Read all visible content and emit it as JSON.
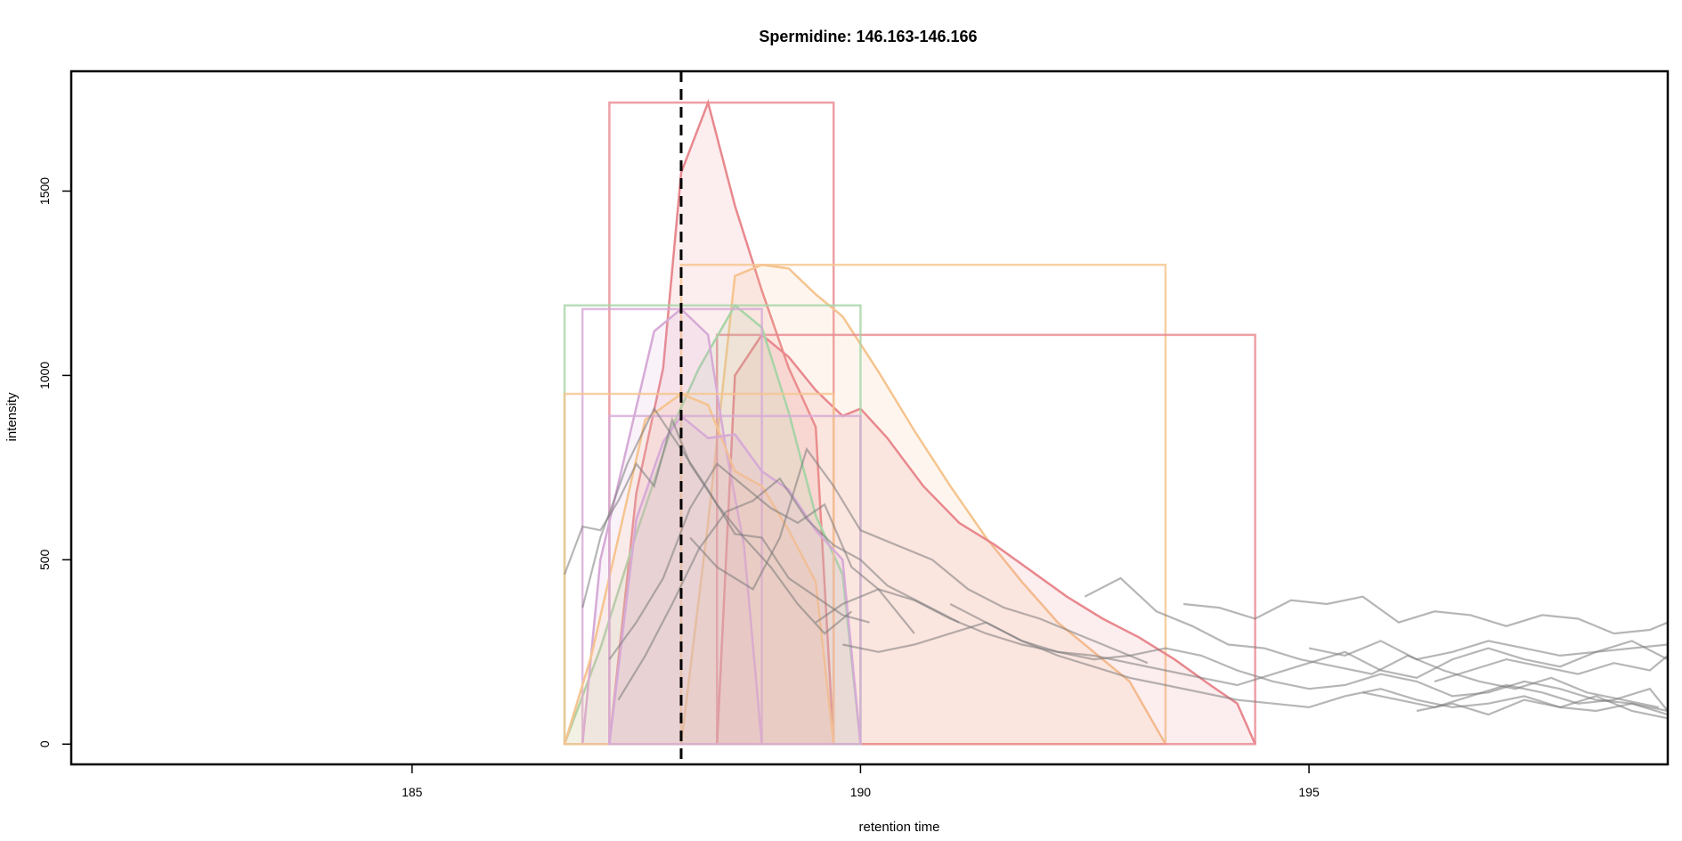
{
  "chart_data": {
    "type": "line",
    "title": "Spermidine: 146.163-146.166",
    "xlabel": "retention time",
    "ylabel": "intensity",
    "xlim": [
      181.2,
      199.0
    ],
    "ylim": [
      -55,
      1825
    ],
    "x_ticks": [
      185,
      190,
      195
    ],
    "y_ticks": [
      0,
      500,
      1000,
      1500
    ],
    "x_tick_labels": [
      "185",
      "190",
      "195"
    ],
    "y_tick_labels": [
      "0",
      "500",
      "1000",
      "1500"
    ],
    "grid": false,
    "legend": "none",
    "reference_line": {
      "x": 188.0,
      "style": "dashed",
      "color": "#000000"
    },
    "peaks": [
      {
        "color": "#e8888e",
        "rt_min": 187.2,
        "rt_max": 189.7,
        "max_intensity": 1740,
        "x": [
          187.2,
          187.5,
          187.8,
          188.0,
          188.3,
          188.6,
          188.9,
          189.2,
          189.5,
          189.7
        ],
        "y": [
          0,
          680,
          1020,
          1550,
          1740,
          1460,
          1230,
          1020,
          860,
          0
        ]
      },
      {
        "color": "#f5c48f",
        "rt_min": 188.0,
        "rt_max": 193.4,
        "max_intensity": 1300,
        "x": [
          188.0,
          188.3,
          188.6,
          188.9,
          189.2,
          189.5,
          189.8,
          190.2,
          190.6,
          191.0,
          191.4,
          191.8,
          192.2,
          192.6,
          193.0,
          193.4
        ],
        "y": [
          0,
          600,
          1270,
          1300,
          1290,
          1220,
          1160,
          1010,
          850,
          700,
          560,
          440,
          330,
          250,
          170,
          0
        ]
      },
      {
        "color": "#e8888e",
        "rt_min": 188.4,
        "rt_max": 194.4,
        "max_intensity": 1110,
        "x": [
          188.4,
          188.6,
          188.9,
          189.2,
          189.5,
          189.8,
          190.0,
          190.3,
          190.7,
          191.1,
          191.5,
          191.9,
          192.3,
          192.7,
          193.1,
          193.5,
          193.9,
          194.2,
          194.4
        ],
        "y": [
          0,
          1000,
          1110,
          1050,
          960,
          890,
          910,
          830,
          700,
          600,
          540,
          470,
          400,
          340,
          290,
          230,
          160,
          110,
          0
        ]
      },
      {
        "color": "#a7d4a7",
        "rt_min": 186.7,
        "rt_max": 190.0,
        "max_intensity": 1190,
        "x": [
          186.7,
          187.1,
          187.5,
          187.9,
          188.2,
          188.6,
          188.9,
          189.2,
          189.5,
          189.8,
          190.0
        ],
        "y": [
          0,
          260,
          570,
          860,
          1020,
          1190,
          1130,
          900,
          620,
          460,
          0
        ]
      },
      {
        "color": "#d6aad6",
        "rt_min": 186.9,
        "rt_max": 188.9,
        "max_intensity": 1180,
        "x": [
          186.9,
          187.1,
          187.4,
          187.7,
          188.0,
          188.3,
          188.5,
          188.7,
          188.9
        ],
        "y": [
          0,
          500,
          810,
          1120,
          1180,
          1110,
          800,
          540,
          0
        ]
      },
      {
        "color": "#f5c48f",
        "rt_min": 186.7,
        "rt_max": 189.7,
        "max_intensity": 950,
        "x": [
          186.7,
          187.0,
          187.3,
          187.6,
          188.0,
          188.3,
          188.6,
          188.9,
          189.2,
          189.5,
          189.7
        ],
        "y": [
          0,
          240,
          560,
          880,
          950,
          920,
          740,
          700,
          580,
          440,
          0
        ]
      },
      {
        "color": "#d6aad6",
        "rt_min": 187.2,
        "rt_max": 190.0,
        "max_intensity": 890,
        "x": [
          187.2,
          187.5,
          187.8,
          188.0,
          188.3,
          188.6,
          188.9,
          189.2,
          189.5,
          189.8,
          190.0
        ],
        "y": [
          0,
          610,
          820,
          890,
          830,
          840,
          740,
          690,
          580,
          500,
          0
        ]
      }
    ],
    "background_traces": [
      {
        "x": [
          186.7,
          186.9,
          187.1,
          187.3,
          187.5,
          187.7,
          187.9,
          188.1,
          188.4,
          188.7,
          189.0,
          189.3,
          189.6,
          189.9
        ],
        "y": [
          460,
          590,
          580,
          660,
          760,
          700,
          880,
          760,
          650,
          560,
          480,
          380,
          300,
          360
        ]
      },
      {
        "x": [
          186.9,
          187.1,
          187.4,
          187.7,
          188.0,
          188.3,
          188.6,
          188.9,
          189.2,
          189.5,
          189.8,
          190.1
        ],
        "y": [
          370,
          560,
          760,
          910,
          800,
          690,
          570,
          560,
          450,
          400,
          350,
          330
        ]
      },
      {
        "x": [
          187.2,
          187.5,
          187.8,
          188.1,
          188.4,
          188.7,
          189.0,
          189.3,
          189.6,
          189.9,
          190.2,
          190.6
        ],
        "y": [
          230,
          330,
          450,
          640,
          760,
          700,
          640,
          600,
          650,
          480,
          420,
          300
        ]
      },
      {
        "x": [
          187.3,
          187.6,
          187.9,
          188.2,
          188.5,
          188.8,
          189.1,
          189.4,
          189.7,
          190.0,
          190.3,
          190.7,
          191.1
        ],
        "y": [
          120,
          240,
          380,
          530,
          630,
          660,
          720,
          610,
          540,
          500,
          430,
          380,
          330
        ]
      },
      {
        "x": [
          188.1,
          188.4,
          188.8,
          189.1,
          189.4,
          189.7,
          190.0,
          190.4,
          190.8,
          191.2,
          191.6,
          192.0,
          192.4,
          192.8,
          193.2
        ],
        "y": [
          560,
          480,
          420,
          560,
          800,
          700,
          580,
          540,
          500,
          420,
          370,
          340,
          300,
          260,
          220
        ]
      },
      {
        "x": [
          189.5,
          189.8,
          190.2,
          190.6,
          191.0,
          191.4,
          191.8,
          192.2,
          192.6,
          193.0,
          193.4,
          193.8,
          194.2,
          194.6,
          195.0,
          195.4,
          195.8,
          196.2,
          196.6,
          197.0,
          197.4,
          197.8,
          198.2,
          198.6,
          199.0
        ],
        "y": [
          330,
          380,
          420,
          390,
          340,
          300,
          270,
          250,
          230,
          240,
          260,
          240,
          200,
          170,
          150,
          160,
          190,
          170,
          130,
          140,
          170,
          150,
          120,
          110,
          90
        ]
      },
      {
        "x": [
          189.8,
          190.2,
          190.6,
          191.0,
          191.4,
          191.8,
          192.2,
          192.6,
          193.0,
          193.4,
          193.8,
          194.2,
          194.6,
          195.0,
          195.4,
          195.8,
          196.2,
          196.6,
          197.0,
          197.4,
          197.8,
          198.2,
          198.6,
          199.0
        ],
        "y": [
          270,
          250,
          270,
          300,
          330,
          280,
          250,
          240,
          220,
          200,
          180,
          160,
          190,
          220,
          250,
          200,
          180,
          230,
          260,
          230,
          210,
          250,
          280,
          230
        ]
      },
      {
        "x": [
          191.0,
          191.4,
          191.8,
          192.2,
          192.6,
          193.0,
          193.4,
          193.8,
          194.2,
          194.6,
          195.0,
          195.4,
          195.8,
          196.2,
          196.6,
          197.0,
          197.4,
          197.8,
          198.2,
          198.6,
          199.0
        ],
        "y": [
          380,
          330,
          280,
          240,
          210,
          180,
          160,
          140,
          120,
          110,
          100,
          130,
          150,
          120,
          100,
          110,
          130,
          100,
          90,
          110,
          80
        ]
      },
      {
        "x": [
          192.5,
          192.9,
          193.3,
          193.7,
          194.1,
          194.5,
          194.9,
          195.3,
          195.7,
          196.1,
          196.5,
          196.9,
          197.3,
          197.7,
          198.1,
          198.5,
          198.9
        ],
        "y": [
          400,
          450,
          360,
          320,
          270,
          260,
          230,
          210,
          190,
          240,
          200,
          170,
          150,
          180,
          140,
          120,
          100
        ]
      },
      {
        "x": [
          193.6,
          194.0,
          194.4,
          194.8,
          195.2,
          195.6,
          196.0,
          196.4,
          196.8,
          197.2,
          197.6,
          198.0,
          198.4,
          198.8,
          199.0
        ],
        "y": [
          380,
          370,
          340,
          390,
          380,
          400,
          330,
          360,
          350,
          320,
          350,
          340,
          300,
          310,
          330
        ]
      },
      {
        "x": [
          195.0,
          195.4,
          195.8,
          196.2,
          196.6,
          197.0,
          197.4,
          197.8,
          198.2,
          198.6,
          199.0
        ],
        "y": [
          260,
          240,
          280,
          230,
          250,
          280,
          260,
          240,
          250,
          260,
          270
        ]
      },
      {
        "x": [
          195.6,
          196.0,
          196.4,
          196.8,
          197.2,
          197.6,
          198.0,
          198.4,
          198.8,
          199.0
        ],
        "y": [
          140,
          120,
          100,
          130,
          160,
          140,
          110,
          120,
          150,
          90
        ]
      },
      {
        "x": [
          196.2,
          196.6,
          197.0,
          197.4,
          197.8,
          198.2,
          198.6,
          199.0
        ],
        "y": [
          90,
          110,
          80,
          120,
          100,
          130,
          90,
          70
        ]
      },
      {
        "x": [
          196.4,
          196.8,
          197.2,
          197.6,
          198.0,
          198.4,
          198.8,
          199.0
        ],
        "y": [
          170,
          200,
          230,
          210,
          190,
          220,
          200,
          240
        ]
      }
    ]
  }
}
